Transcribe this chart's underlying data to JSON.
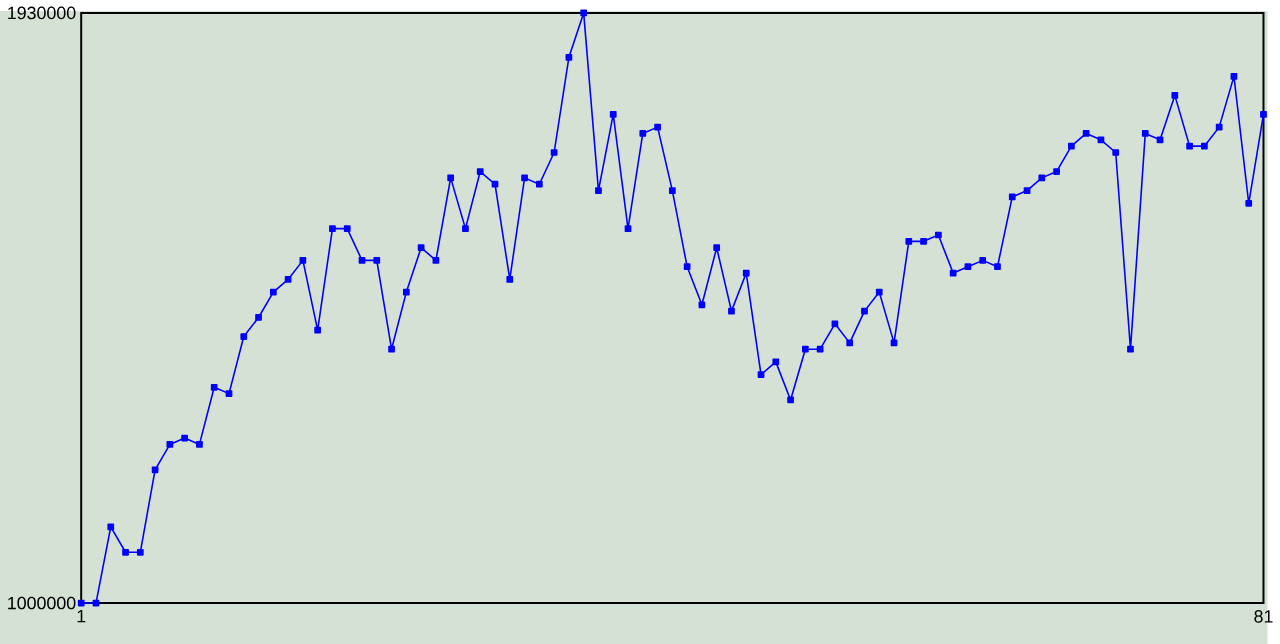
{
  "chart_data": {
    "type": "line",
    "x": [
      1,
      2,
      3,
      4,
      5,
      6,
      7,
      8,
      9,
      10,
      11,
      12,
      13,
      14,
      15,
      16,
      17,
      18,
      19,
      20,
      21,
      22,
      23,
      24,
      25,
      26,
      27,
      28,
      29,
      30,
      31,
      32,
      33,
      34,
      35,
      36,
      37,
      38,
      39,
      40,
      41,
      42,
      43,
      44,
      45,
      46,
      47,
      48,
      49,
      50,
      51,
      52,
      53,
      54,
      55,
      56,
      57,
      58,
      59,
      60,
      61,
      62,
      63,
      64,
      65,
      66,
      67,
      68,
      69,
      70,
      71,
      72,
      73,
      74,
      75,
      76,
      77,
      78,
      79,
      80,
      81
    ],
    "series": [
      {
        "color": "#0000ff",
        "values": [
          1000000,
          1000000,
          1120000,
          1080000,
          1080000,
          1210000,
          1250000,
          1260000,
          1250000,
          1340000,
          1330000,
          1420000,
          1450000,
          1490000,
          1510000,
          1540000,
          1430000,
          1590000,
          1590000,
          1540000,
          1540000,
          1400000,
          1490000,
          1560000,
          1540000,
          1670000,
          1590000,
          1680000,
          1660000,
          1510000,
          1670000,
          1660000,
          1710000,
          1860000,
          1930000,
          1650000,
          1770000,
          1590000,
          1740000,
          1750000,
          1650000,
          1530000,
          1470000,
          1560000,
          1460000,
          1520000,
          1360000,
          1380000,
          1320000,
          1400000,
          1400000,
          1440000,
          1410000,
          1460000,
          1490000,
          1410000,
          1570000,
          1570000,
          1580000,
          1520000,
          1530000,
          1540000,
          1530000,
          1640000,
          1650000,
          1670000,
          1680000,
          1720000,
          1740000,
          1730000,
          1710000,
          1400000,
          1740000,
          1730000,
          1800000,
          1720000,
          1720000,
          1750000,
          1830000,
          1630000,
          1770000
        ]
      }
    ],
    "xlim": [
      1,
      81
    ],
    "xticks": [
      1,
      81
    ],
    "ylim": [
      1000000,
      1930000
    ],
    "yticks": [
      1000000,
      1930000
    ],
    "marker": "square",
    "line_style": "solid"
  }
}
